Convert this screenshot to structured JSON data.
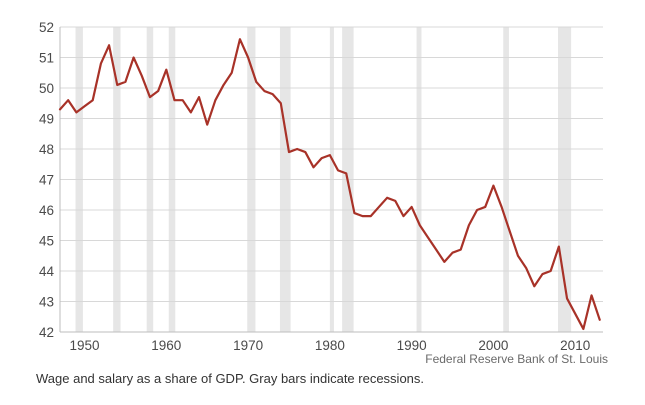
{
  "chart_data": {
    "type": "line",
    "title": "",
    "xlabel": "",
    "ylabel": "",
    "xlim": [
      1947,
      2013.4
    ],
    "ylim": [
      42,
      52
    ],
    "x_ticks": [
      1950,
      1960,
      1970,
      1980,
      1990,
      2000,
      2010
    ],
    "x_tick_labels": [
      "1950",
      "1960",
      "1970",
      "1980",
      "1990",
      "2000",
      "2010"
    ],
    "y_ticks": [
      42,
      43,
      44,
      45,
      46,
      47,
      48,
      49,
      50,
      51,
      52
    ],
    "y_tick_labels": [
      "42",
      "43",
      "44",
      "45",
      "46",
      "47",
      "48",
      "49",
      "50",
      "51",
      "52"
    ],
    "grid": "horizontal",
    "recessions": [
      [
        1948.9,
        1949.8
      ],
      [
        1953.5,
        1954.4
      ],
      [
        1957.6,
        1958.4
      ],
      [
        1960.3,
        1961.1
      ],
      [
        1969.9,
        1970.9
      ],
      [
        1973.9,
        1975.2
      ],
      [
        1980.0,
        1980.5
      ],
      [
        1981.5,
        1982.9
      ],
      [
        1990.6,
        1991.2
      ],
      [
        2001.2,
        2001.9
      ],
      [
        2007.9,
        2009.5
      ]
    ],
    "series": [
      {
        "color": "#a83228",
        "x": [
          1947,
          1948,
          1949,
          1950,
          1951,
          1952,
          1953,
          1954,
          1955,
          1956,
          1957,
          1958,
          1959,
          1960,
          1961,
          1962,
          1963,
          1964,
          1965,
          1966,
          1967,
          1968,
          1969,
          1970,
          1971,
          1972,
          1973,
          1974,
          1975,
          1976,
          1977,
          1978,
          1979,
          1980,
          1981,
          1982,
          1983,
          1984,
          1985,
          1986,
          1987,
          1988,
          1989,
          1990,
          1991,
          1992,
          1993,
          1994,
          1995,
          1996,
          1997,
          1998,
          1999,
          2000,
          2001,
          2002,
          2003,
          2004,
          2005,
          2006,
          2007,
          2008,
          2009,
          2010,
          2011,
          2012,
          2013
        ],
        "values": [
          49.3,
          49.6,
          49.2,
          49.4,
          49.6,
          50.8,
          51.4,
          50.1,
          50.2,
          51.0,
          50.4,
          49.7,
          49.9,
          50.6,
          49.6,
          49.6,
          49.2,
          49.7,
          48.8,
          49.6,
          50.1,
          50.5,
          51.6,
          51.0,
          50.2,
          49.9,
          49.8,
          49.5,
          47.9,
          48.0,
          47.9,
          47.4,
          47.7,
          47.8,
          47.3,
          47.2,
          45.9,
          45.8,
          45.8,
          46.1,
          46.4,
          46.3,
          45.8,
          46.1,
          45.5,
          45.1,
          44.7,
          44.3,
          44.6,
          44.7,
          45.5,
          46.0,
          46.1,
          46.8,
          46.1,
          45.3,
          44.5,
          44.1,
          43.5,
          43.9,
          44.0,
          44.8,
          43.1,
          42.6,
          42.1,
          43.2,
          42.4
        ]
      }
    ],
    "source": "Federal Reserve Bank of St. Louis",
    "caption": "Wage and salary as a share of GDP. Gray bars indicate recessions.",
    "background_color": "#ffffff",
    "grid_color": "#d8d8d8",
    "recession_color": "#e6e6e6",
    "axis_color": "#bdbdbd"
  }
}
